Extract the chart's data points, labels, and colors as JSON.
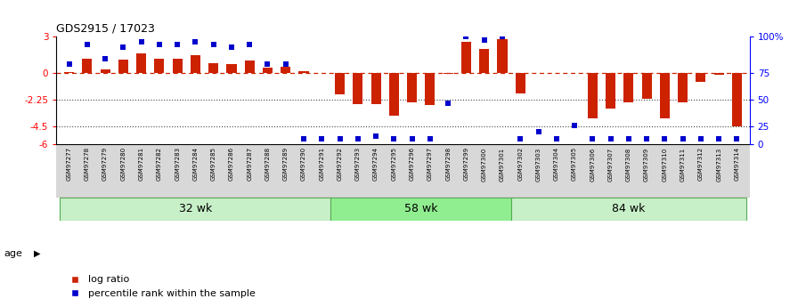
{
  "title": "GDS2915 / 17023",
  "samples": [
    "GSM97277",
    "GSM97278",
    "GSM97279",
    "GSM97280",
    "GSM97281",
    "GSM97282",
    "GSM97283",
    "GSM97284",
    "GSM97285",
    "GSM97286",
    "GSM97287",
    "GSM97288",
    "GSM97289",
    "GSM97290",
    "GSM97291",
    "GSM97292",
    "GSM97293",
    "GSM97294",
    "GSM97295",
    "GSM97296",
    "GSM97297",
    "GSM97298",
    "GSM97299",
    "GSM97300",
    "GSM97301",
    "GSM97302",
    "GSM97303",
    "GSM97304",
    "GSM97305",
    "GSM97306",
    "GSM97307",
    "GSM97308",
    "GSM97309",
    "GSM97310",
    "GSM97311",
    "GSM97312",
    "GSM97313",
    "GSM97314"
  ],
  "log_ratio": [
    0.05,
    1.2,
    0.3,
    1.1,
    1.6,
    1.2,
    1.2,
    1.5,
    0.8,
    0.7,
    1.0,
    0.4,
    0.5,
    0.15,
    -0.05,
    -1.8,
    -2.6,
    -2.6,
    -3.6,
    -2.5,
    -2.7,
    -0.1,
    2.6,
    2.0,
    2.8,
    -1.7,
    -0.05,
    -0.05,
    -0.05,
    -3.8,
    -3.0,
    -2.5,
    -2.2,
    -3.8,
    -2.5,
    -0.8,
    -0.15,
    -4.5
  ],
  "percentile_rank": [
    75,
    93,
    80,
    90,
    95,
    93,
    93,
    95,
    93,
    90,
    93,
    75,
    75,
    5,
    5,
    5,
    5,
    8,
    5,
    5,
    5,
    38,
    100,
    97,
    100,
    5,
    12,
    5,
    18,
    5,
    5,
    5,
    5,
    5,
    5,
    5,
    5,
    5
  ],
  "groups": [
    {
      "label": "32 wk",
      "start": 0,
      "end": 14
    },
    {
      "label": "58 wk",
      "start": 15,
      "end": 24
    },
    {
      "label": "84 wk",
      "start": 25,
      "end": 37
    }
  ],
  "ylim_main": [
    -6,
    3
  ],
  "yticks_left": [
    3,
    0,
    -2.25,
    -4.5,
    -6
  ],
  "ytick_labels_left": [
    "3",
    "0",
    "-2.25",
    "-4.5",
    "-6"
  ],
  "ytick_labels_right": [
    "100%",
    "75",
    "50",
    "25",
    "0"
  ],
  "bar_color": "#cc2200",
  "dot_color": "#0000cc",
  "group_color_light": "#c8f0c8",
  "group_color_dark": "#66cc66",
  "group_border_color": "#55aa55",
  "bg_label_color": "#d8d8d8",
  "age_label": "age",
  "legend_bar": "log ratio",
  "legend_dot": "percentile rank within the sample",
  "hline0_color": "#cc2200",
  "hline_dot_color": "#444444"
}
